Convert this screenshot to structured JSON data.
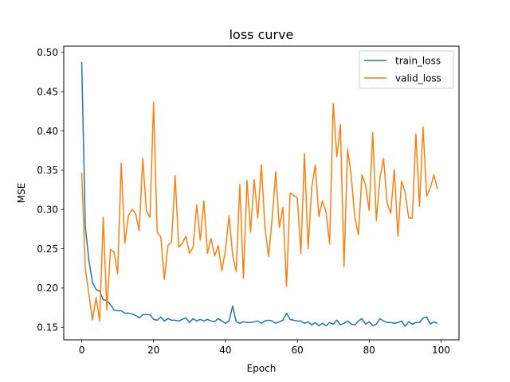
{
  "chart_data": {
    "type": "line",
    "title": "loss curve",
    "xlabel": "Epoch",
    "ylabel": "MSE",
    "xlim": [
      -5,
      105
    ],
    "ylim": [
      0.134,
      0.508
    ],
    "xticks": [
      0,
      20,
      40,
      60,
      80,
      100
    ],
    "yticks": [
      0.15,
      0.2,
      0.25,
      0.3,
      0.35,
      0.4,
      0.45,
      0.5
    ],
    "ytick_labels": [
      "0.15",
      "0.20",
      "0.25",
      "0.30",
      "0.35",
      "0.40",
      "0.45",
      "0.50"
    ],
    "grid": false,
    "legend_position": "top-right",
    "x": [
      0,
      1,
      2,
      3,
      4,
      5,
      6,
      7,
      8,
      9,
      10,
      11,
      12,
      13,
      14,
      15,
      16,
      17,
      18,
      19,
      20,
      21,
      22,
      23,
      24,
      25,
      26,
      27,
      28,
      29,
      30,
      31,
      32,
      33,
      34,
      35,
      36,
      37,
      38,
      39,
      40,
      41,
      42,
      43,
      44,
      45,
      46,
      47,
      48,
      49,
      50,
      51,
      52,
      53,
      54,
      55,
      56,
      57,
      58,
      59,
      60,
      61,
      62,
      63,
      64,
      65,
      66,
      67,
      68,
      69,
      70,
      71,
      72,
      73,
      74,
      75,
      76,
      77,
      78,
      79,
      80,
      81,
      82,
      83,
      84,
      85,
      86,
      87,
      88,
      89,
      90,
      91,
      92,
      93,
      94,
      95,
      96,
      97,
      98,
      99
    ],
    "series": [
      {
        "name": "train_loss",
        "color": "#1f77b4",
        "values": [
          0.488,
          0.278,
          0.235,
          0.207,
          0.198,
          0.196,
          0.185,
          0.184,
          0.179,
          0.172,
          0.171,
          0.171,
          0.168,
          0.168,
          0.167,
          0.165,
          0.162,
          0.166,
          0.166,
          0.166,
          0.16,
          0.159,
          0.163,
          0.158,
          0.161,
          0.159,
          0.159,
          0.158,
          0.16,
          0.162,
          0.156,
          0.161,
          0.158,
          0.16,
          0.158,
          0.16,
          0.158,
          0.157,
          0.161,
          0.158,
          0.155,
          0.158,
          0.177,
          0.157,
          0.155,
          0.157,
          0.156,
          0.156,
          0.157,
          0.158,
          0.155,
          0.158,
          0.159,
          0.158,
          0.155,
          0.157,
          0.159,
          0.168,
          0.16,
          0.159,
          0.158,
          0.158,
          0.155,
          0.157,
          0.153,
          0.156,
          0.152,
          0.155,
          0.152,
          0.156,
          0.154,
          0.159,
          0.153,
          0.155,
          0.158,
          0.154,
          0.153,
          0.158,
          0.161,
          0.154,
          0.157,
          0.152,
          0.154,
          0.161,
          0.158,
          0.156,
          0.156,
          0.155,
          0.156,
          0.158,
          0.151,
          0.157,
          0.154,
          0.156,
          0.156,
          0.162,
          0.163,
          0.154,
          0.157,
          0.155
        ]
      },
      {
        "name": "valid_loss",
        "color": "#ff7f0e",
        "values": [
          0.347,
          0.225,
          0.192,
          0.159,
          0.188,
          0.158,
          0.29,
          0.172,
          0.249,
          0.246,
          0.218,
          0.359,
          0.257,
          0.292,
          0.3,
          0.295,
          0.273,
          0.365,
          0.298,
          0.29,
          0.437,
          0.271,
          0.265,
          0.211,
          0.254,
          0.259,
          0.343,
          0.252,
          0.257,
          0.266,
          0.244,
          0.252,
          0.306,
          0.261,
          0.311,
          0.244,
          0.263,
          0.241,
          0.254,
          0.222,
          0.248,
          0.292,
          0.242,
          0.221,
          0.332,
          0.212,
          0.337,
          0.271,
          0.338,
          0.289,
          0.357,
          0.277,
          0.24,
          0.288,
          0.348,
          0.277,
          0.303,
          0.202,
          0.321,
          0.318,
          0.315,
          0.244,
          0.371,
          0.25,
          0.327,
          0.357,
          0.291,
          0.311,
          0.297,
          0.256,
          0.435,
          0.367,
          0.408,
          0.227,
          0.377,
          0.343,
          0.29,
          0.268,
          0.344,
          0.331,
          0.299,
          0.398,
          0.286,
          0.34,
          0.365,
          0.308,
          0.295,
          0.351,
          0.266,
          0.336,
          0.322,
          0.289,
          0.289,
          0.396,
          0.304,
          0.405,
          0.317,
          0.327,
          0.344,
          0.326
        ]
      }
    ]
  }
}
